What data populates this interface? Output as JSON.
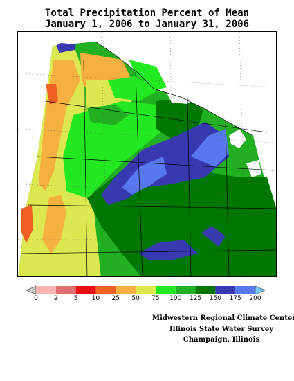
{
  "title_line1": "Total Precipitation Percent of Mean",
  "title_line2": "January 1, 2006 to January 31, 2006",
  "legend": {
    "colors": [
      "#c8c8c8",
      "#f7b4b4",
      "#e07070",
      "#e81010",
      "#f06020",
      "#f5b040",
      "#dde850",
      "#22e822",
      "#22b022",
      "#007800",
      "#3838b0",
      "#5878f0",
      "#78c8ff"
    ],
    "labels": [
      "0",
      "2",
      "5",
      "10",
      "25",
      "50",
      "75",
      "100",
      "125",
      "150",
      "175",
      "200"
    ]
  },
  "credits": {
    "line1": "Midwestern Regional Climate Center",
    "line2": "Illinois State Water Survey",
    "line3": "Champaign, Illinois"
  }
}
